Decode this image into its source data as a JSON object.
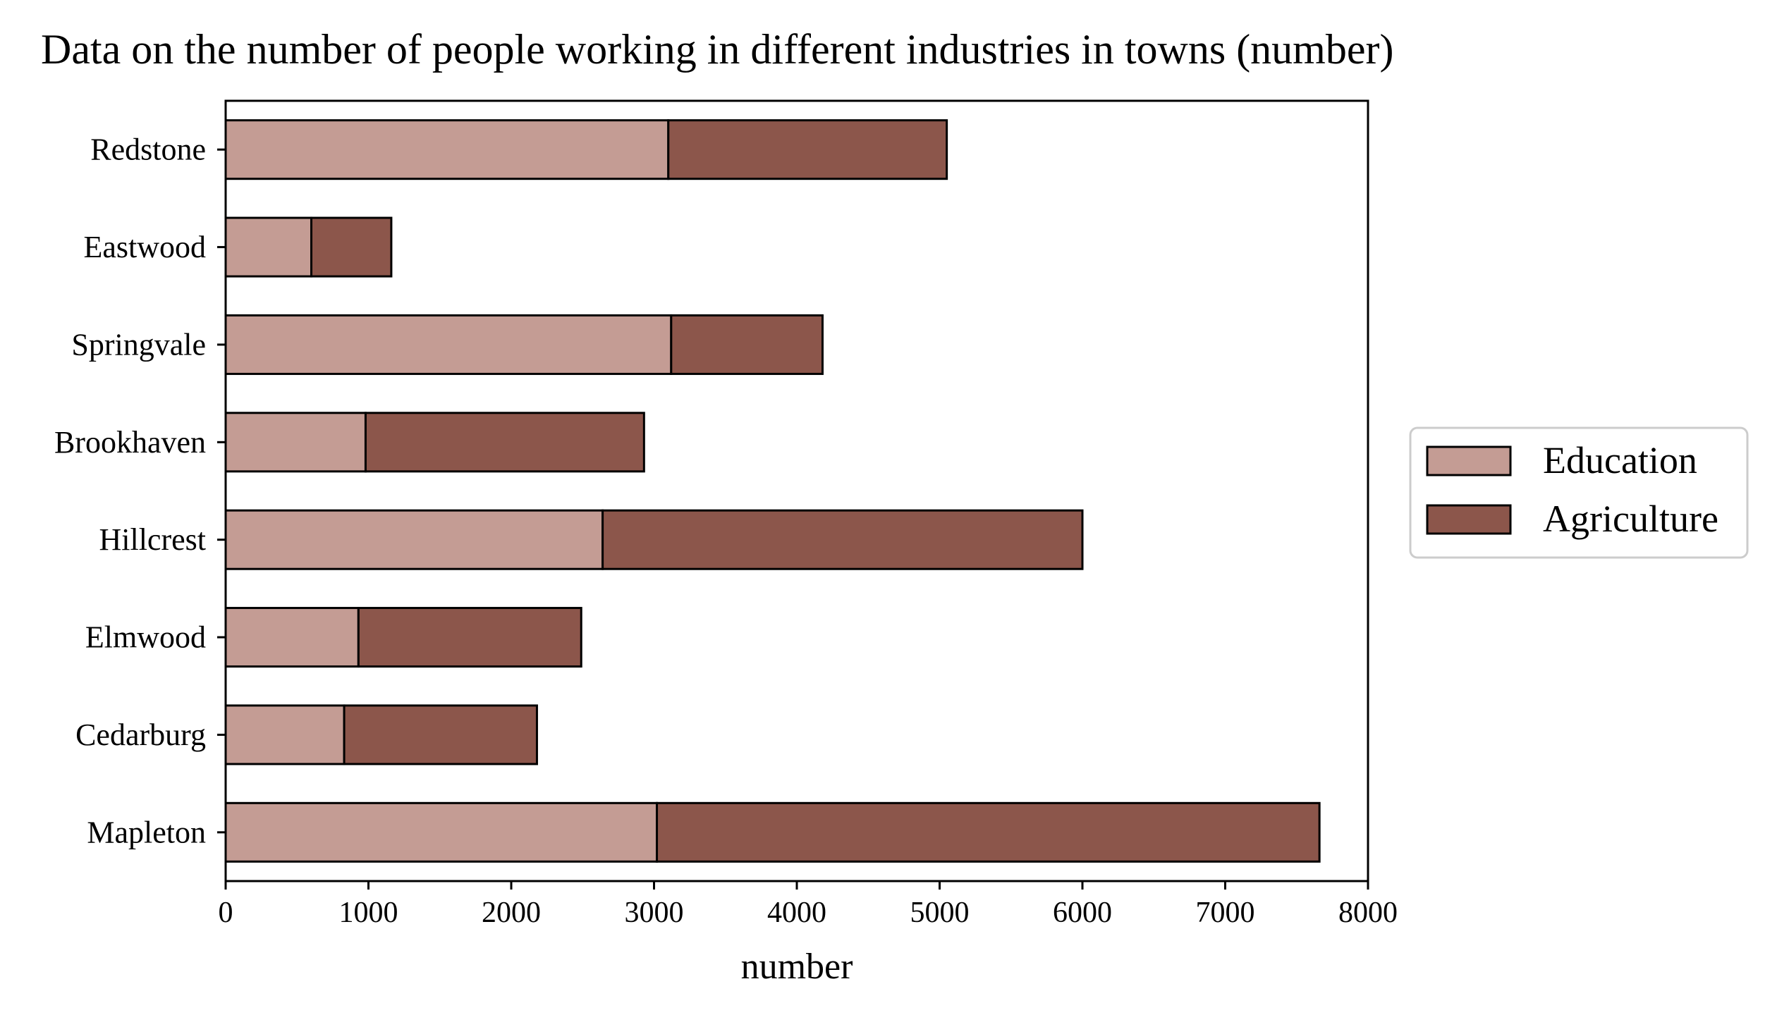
{
  "chart_data": {
    "type": "bar",
    "orientation": "horizontal",
    "stacked": true,
    "title": "Data on the number of people working in different industries in towns (number)",
    "xlabel": "number",
    "ylabel": "",
    "xlim": [
      0,
      8000
    ],
    "x_ticks": [
      0,
      1000,
      2000,
      3000,
      4000,
      5000,
      6000,
      7000,
      8000
    ],
    "x_tick_labels": [
      "0",
      "1000",
      "2000",
      "3000",
      "4000",
      "5000",
      "6000",
      "7000",
      "8000"
    ],
    "categories": [
      "Redstone",
      "Eastwood",
      "Springvale",
      "Brookhaven",
      "Hillcrest",
      "Elmwood",
      "Cedarburg",
      "Mapleton"
    ],
    "series": [
      {
        "name": "Education",
        "color": "#c49c94",
        "values": [
          3100,
          600,
          3120,
          980,
          2640,
          930,
          830,
          3020
        ]
      },
      {
        "name": "Agriculture",
        "color": "#8c564b",
        "values": [
          1950,
          560,
          1060,
          1950,
          3360,
          1560,
          1350,
          4640
        ]
      }
    ],
    "grid": false,
    "legend": {
      "placement": "right",
      "entries": [
        "Education",
        "Agriculture"
      ]
    }
  }
}
